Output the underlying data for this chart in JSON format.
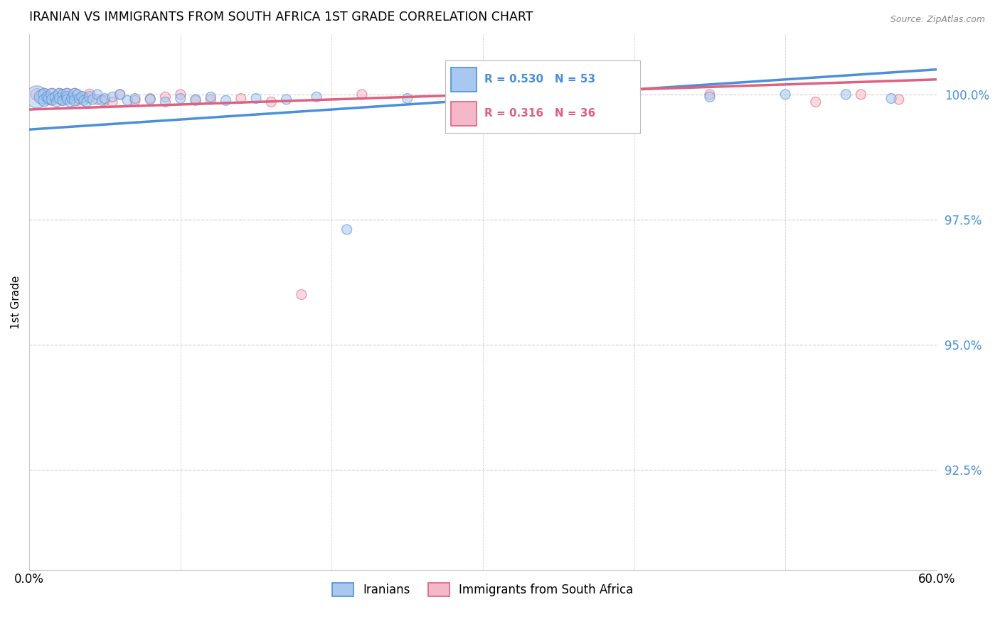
{
  "title": "IRANIAN VS IMMIGRANTS FROM SOUTH AFRICA 1ST GRADE CORRELATION CHART",
  "source": "Source: ZipAtlas.com",
  "ylabel": "1st Grade",
  "ytick_labels": [
    "100.0%",
    "97.5%",
    "95.0%",
    "92.5%"
  ],
  "ytick_values": [
    1.0,
    0.975,
    0.95,
    0.925
  ],
  "xlim": [
    0.0,
    0.6
  ],
  "ylim": [
    0.905,
    1.012
  ],
  "legend_blue_label": "Iranians",
  "legend_pink_label": "Immigrants from South Africa",
  "corr_blue_R": 0.53,
  "corr_blue_N": 53,
  "corr_pink_R": 0.316,
  "corr_pink_N": 36,
  "blue_color": "#a8c8f0",
  "pink_color": "#f5b8c8",
  "trend_blue": "#4a90d9",
  "trend_pink": "#e06080",
  "background_color": "#ffffff",
  "grid_color": "#d0d0d0",
  "blue_scatter_x": [
    0.005,
    0.008,
    0.01,
    0.01,
    0.012,
    0.013,
    0.015,
    0.015,
    0.017,
    0.018,
    0.02,
    0.02,
    0.022,
    0.022,
    0.025,
    0.025,
    0.025,
    0.027,
    0.028,
    0.03,
    0.03,
    0.032,
    0.033,
    0.035,
    0.036,
    0.038,
    0.04,
    0.042,
    0.045,
    0.048,
    0.05,
    0.055,
    0.06,
    0.065,
    0.07,
    0.08,
    0.09,
    0.1,
    0.11,
    0.12,
    0.13,
    0.15,
    0.17,
    0.19,
    0.21,
    0.25,
    0.3,
    0.35,
    0.4,
    0.45,
    0.5,
    0.54,
    0.57
  ],
  "blue_scatter_y": [
    0.9995,
    0.9995,
    1.0,
    0.9988,
    0.9995,
    0.9992,
    1.0,
    0.999,
    0.9995,
    0.9985,
    1.0,
    0.9992,
    1.0,
    0.9988,
    1.0,
    0.9995,
    0.999,
    0.9985,
    0.9992,
    1.0,
    0.9988,
    1.0,
    0.9992,
    0.9995,
    0.9988,
    0.9985,
    0.9995,
    0.999,
    1.0,
    0.9988,
    0.9992,
    0.9995,
    1.0,
    0.9988,
    0.9992,
    0.999,
    0.9985,
    0.9992,
    0.999,
    0.9995,
    0.9988,
    0.9992,
    0.999,
    0.9995,
    0.973,
    0.9992,
    0.9995,
    0.9992,
    0.999,
    0.9995,
    1.0,
    1.0,
    0.9992
  ],
  "blue_scatter_sizes": [
    500,
    200,
    150,
    150,
    120,
    120,
    150,
    120,
    100,
    100,
    150,
    120,
    100,
    100,
    150,
    120,
    100,
    100,
    100,
    150,
    120,
    100,
    100,
    120,
    100,
    100,
    120,
    100,
    100,
    100,
    100,
    100,
    100,
    100,
    100,
    100,
    100,
    100,
    100,
    100,
    100,
    100,
    100,
    100,
    100,
    100,
    100,
    100,
    100,
    100,
    100,
    100,
    100
  ],
  "pink_scatter_x": [
    0.005,
    0.008,
    0.01,
    0.012,
    0.015,
    0.015,
    0.018,
    0.02,
    0.022,
    0.025,
    0.027,
    0.03,
    0.032,
    0.035,
    0.038,
    0.04,
    0.045,
    0.05,
    0.055,
    0.06,
    0.07,
    0.08,
    0.09,
    0.1,
    0.11,
    0.12,
    0.14,
    0.16,
    0.18,
    0.22,
    0.3,
    0.35,
    0.45,
    0.52,
    0.55,
    0.575
  ],
  "pink_scatter_y": [
    1.0,
    0.9995,
    1.0,
    0.999,
    1.0,
    0.9988,
    0.9995,
    1.0,
    0.9988,
    1.0,
    0.9992,
    1.0,
    0.9988,
    0.9995,
    0.9992,
    1.0,
    0.999,
    0.9988,
    0.9985,
    1.0,
    0.9988,
    0.9992,
    0.9995,
    1.0,
    0.9988,
    0.999,
    0.9992,
    0.9985,
    0.96,
    1.0,
    0.9992,
    0.9988,
    1.0,
    0.9985,
    1.0,
    0.999
  ],
  "pink_scatter_sizes": [
    150,
    120,
    150,
    120,
    150,
    100,
    120,
    150,
    100,
    150,
    100,
    150,
    100,
    120,
    100,
    120,
    100,
    100,
    100,
    100,
    100,
    100,
    100,
    100,
    100,
    100,
    100,
    100,
    100,
    100,
    100,
    100,
    100,
    100,
    100,
    100
  ],
  "trend_blue_x0": 0.0,
  "trend_blue_x1": 0.6,
  "trend_blue_y0": 0.993,
  "trend_blue_y1": 1.005,
  "trend_pink_x0": 0.0,
  "trend_pink_x1": 0.6,
  "trend_pink_y0": 0.997,
  "trend_pink_y1": 1.003
}
